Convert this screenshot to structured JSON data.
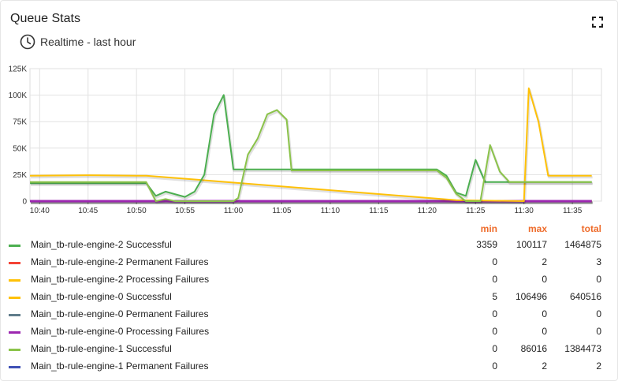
{
  "widget": {
    "title": "Queue Stats",
    "timewindow_label": "Realtime - last hour",
    "icons": {
      "clock": "clock-icon",
      "fullscreen": "fullscreen-icon"
    }
  },
  "legend": {
    "headers": {
      "min": "min",
      "max": "max",
      "total": "total"
    },
    "header_color": "#ee6b2a",
    "items": [
      {
        "name": "Main_tb-rule-engine-2 Successful",
        "color": "#4caf50",
        "min": "3359",
        "max": "100117",
        "total": "1464875"
      },
      {
        "name": "Main_tb-rule-engine-2 Permanent Failures",
        "color": "#f44336",
        "min": "0",
        "max": "2",
        "total": "3"
      },
      {
        "name": "Main_tb-rule-engine-2 Processing Failures",
        "color": "#ffc107",
        "min": "0",
        "max": "0",
        "total": "0"
      },
      {
        "name": "Main_tb-rule-engine-0 Successful",
        "color": "#ffc107",
        "min": "5",
        "max": "106496",
        "total": "640516"
      },
      {
        "name": "Main_tb-rule-engine-0 Permanent Failures",
        "color": "#607d8b",
        "min": "0",
        "max": "0",
        "total": "0"
      },
      {
        "name": "Main_tb-rule-engine-0 Processing Failures",
        "color": "#9c27b0",
        "min": "0",
        "max": "0",
        "total": "0"
      },
      {
        "name": "Main_tb-rule-engine-1 Successful",
        "color": "#8bc34a",
        "min": "0",
        "max": "86016",
        "total": "1384473"
      },
      {
        "name": "Main_tb-rule-engine-1 Permanent Failures",
        "color": "#3f51b5",
        "min": "0",
        "max": "2",
        "total": "2"
      }
    ]
  },
  "chart_data": {
    "type": "line",
    "title": "",
    "xlabel": "",
    "ylabel": "",
    "grid": true,
    "legend_placement": "bottom",
    "xlim": [
      "10:39",
      "11:38"
    ],
    "ylim": [
      0,
      125000
    ],
    "y_ticks": [
      0,
      25000,
      50000,
      75000,
      100000,
      125000
    ],
    "y_tick_labels": [
      "0",
      "25K",
      "50K",
      "75K",
      "100K",
      "125K"
    ],
    "x_ticks": [
      "10:40",
      "10:45",
      "10:50",
      "10:55",
      "11:00",
      "11:05",
      "11:10",
      "11:15",
      "11:20",
      "11:25",
      "11:30",
      "11:35"
    ],
    "series": [
      {
        "name": "Main_tb-rule-engine-2 Permanent Failures",
        "color": "#f44336",
        "points": [
          [
            "10:39",
            0
          ],
          [
            "11:37",
            0
          ]
        ]
      },
      {
        "name": "Main_tb-rule-engine-0 Permanent Failures",
        "color": "#607d8b",
        "points": [
          [
            "10:39",
            0
          ],
          [
            "11:37",
            0
          ]
        ]
      },
      {
        "name": "Main_tb-rule-engine-1 Permanent Failures",
        "color": "#3f51b5",
        "points": [
          [
            "10:39",
            0
          ],
          [
            "11:37",
            0
          ]
        ]
      },
      {
        "name": "Main_tb-rule-engine-2 Processing Failures",
        "color": "#ffc107",
        "points": [
          [
            "10:39",
            0
          ],
          [
            "11:37",
            0
          ]
        ]
      },
      {
        "name": "Main_tb-rule-engine-0 Processing Failures",
        "color": "#9c27b0",
        "points": [
          [
            "10:39",
            0
          ],
          [
            "11:37",
            0
          ]
        ]
      },
      {
        "name": "Main_tb-rule-engine-0 Successful",
        "color": "#ffc107",
        "points": [
          [
            "10:39",
            24000
          ],
          [
            "10:45",
            24500
          ],
          [
            "10:50",
            24000
          ],
          [
            "10:51",
            24000
          ],
          [
            "11:23",
            1000
          ],
          [
            "11:30",
            5
          ],
          [
            "11:30.5",
            106496
          ],
          [
            "11:31.5",
            75000
          ],
          [
            "11:32.5",
            24000
          ],
          [
            "11:37",
            24000
          ]
        ]
      },
      {
        "name": "Main_tb-rule-engine-2 Successful",
        "color": "#4caf50",
        "points": [
          [
            "10:39",
            17000
          ],
          [
            "10:51",
            17000
          ],
          [
            "10:52",
            5000
          ],
          [
            "10:53",
            9000
          ],
          [
            "10:55",
            4000
          ],
          [
            "10:56",
            9000
          ],
          [
            "10:57",
            25000
          ],
          [
            "10:58",
            82000
          ],
          [
            "10:59",
            100117
          ],
          [
            "11:00",
            30000
          ],
          [
            "11:05",
            30000
          ],
          [
            "11:21",
            30000
          ],
          [
            "11:22",
            24000
          ],
          [
            "11:23",
            8000
          ],
          [
            "11:24",
            5000
          ],
          [
            "11:25",
            39000
          ],
          [
            "11:26",
            18000
          ],
          [
            "11:30",
            18000
          ],
          [
            "11:37",
            18000
          ]
        ]
      },
      {
        "name": "Main_tb-rule-engine-1 Successful",
        "color": "#8bc34a",
        "points": [
          [
            "10:39",
            18000
          ],
          [
            "10:51",
            18000
          ],
          [
            "10:52",
            0
          ],
          [
            "10:53",
            2000
          ],
          [
            "10:54",
            0
          ],
          [
            "11:00",
            0
          ],
          [
            "11:00.5",
            3000
          ],
          [
            "11:01.5",
            44000
          ],
          [
            "11:02.5",
            59000
          ],
          [
            "11:03.5",
            82000
          ],
          [
            "11:04.5",
            86016
          ],
          [
            "11:05.5",
            77000
          ],
          [
            "11:06",
            29000
          ],
          [
            "11:21",
            29000
          ],
          [
            "11:22",
            22000
          ],
          [
            "11:23",
            7000
          ],
          [
            "11:24",
            0
          ],
          [
            "11:25.5",
            0
          ],
          [
            "11:26.5",
            53000
          ],
          [
            "11:27.5",
            28000
          ],
          [
            "11:28.5",
            18000
          ],
          [
            "11:37",
            18000
          ]
        ]
      }
    ]
  }
}
